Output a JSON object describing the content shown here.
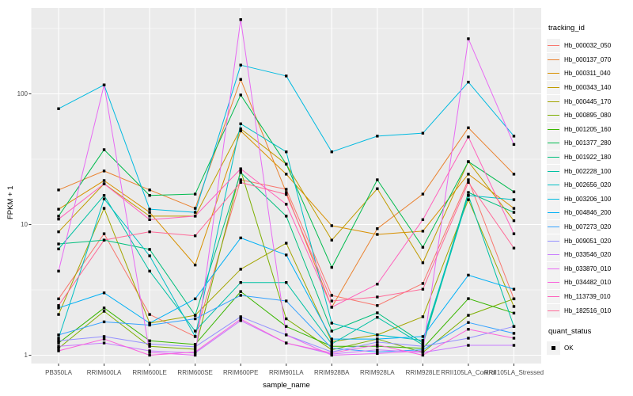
{
  "chart_data": {
    "type": "line",
    "xlabel": "sample_name",
    "ylabel": "FPKM + 1",
    "y_scale": "log10",
    "y_tick_labels": [
      "1",
      "10",
      "100"
    ],
    "y_tick_values": [
      1,
      10,
      100
    ],
    "y_minor_values": [
      3.1623,
      31.623,
      316.23
    ],
    "ylim": [
      0.76,
      470
    ],
    "grid": true,
    "legend_position": "right",
    "categories": [
      "PB350LA",
      "RRIM600LA",
      "RRIM600LE",
      "RRIM600SE",
      "RRIM600PE",
      "RRIM901LA",
      "RRIM928BA",
      "RRIM928LA",
      "RRIM928LE",
      "RRII105LA_Control",
      "RRII105LA_Stressed"
    ],
    "legend": {
      "tracking_title": "tracking_id",
      "quant_title": "quant_status",
      "quant_item": "OK"
    },
    "point_shape": "filled-square",
    "point_color": "#000000",
    "colors": {
      "panel_bg": "#EBEBEB",
      "grid": "#FFFFFF",
      "tick_mark": "#333333",
      "tick_label": "#4D4D4D",
      "axis_title": "#000000",
      "legend_key_bg": "#F2F2F2"
    },
    "series": [
      {
        "name": "Hb_000032_050",
        "color": "#F8766D",
        "values": [
          2.7,
          8.5,
          2.05,
          1.39,
          22,
          18.6,
          2.87,
          2.4,
          3.54,
          22,
          2.7
        ]
      },
      {
        "name": "Hb_000137_070",
        "color": "#EA8331",
        "values": [
          18.4,
          25.7,
          18.4,
          13.3,
          129,
          17.6,
          2.33,
          9.3,
          17.1,
          55,
          24.3
        ]
      },
      {
        "name": "Hb_000311_040",
        "color": "#D89000",
        "values": [
          13.1,
          21.7,
          12.4,
          4.9,
          52,
          24.3,
          9.8,
          8.4,
          8.9,
          24.3,
          13.3
        ]
      },
      {
        "name": "Hb_000343_140",
        "color": "#C09B00",
        "values": [
          8.8,
          20.5,
          11.6,
          11.6,
          54,
          29,
          7.6,
          18.8,
          5.1,
          30.3,
          10.7
        ]
      },
      {
        "name": "Hb_000445_170",
        "color": "#A3A500",
        "values": [
          2.05,
          13.3,
          1.76,
          2.02,
          4.55,
          7.2,
          1.27,
          1.43,
          1.97,
          15.5,
          2.36
        ]
      },
      {
        "name": "Hb_000895_080",
        "color": "#7CAE00",
        "values": [
          1.13,
          2.17,
          1.17,
          1.11,
          26,
          1.9,
          1.1,
          1.33,
          1.05,
          2.02,
          2.7
        ]
      },
      {
        "name": "Hb_001205_160",
        "color": "#39B600",
        "values": [
          1.24,
          2.3,
          1.29,
          1.21,
          3.07,
          1.66,
          1.17,
          1.17,
          1.13,
          2.71,
          2.1
        ]
      },
      {
        "name": "Hb_001377_280",
        "color": "#00BB4E",
        "values": [
          11.6,
          37.4,
          16.7,
          17.1,
          98,
          29,
          4.7,
          22,
          6.7,
          30.3,
          17.8
        ]
      },
      {
        "name": "Hb_001922_180",
        "color": "#00BF7D",
        "values": [
          7.1,
          7.6,
          6.45,
          2.02,
          25,
          11.6,
          1.53,
          2.11,
          1.24,
          17.6,
          12.4
        ]
      },
      {
        "name": "Hb_002228_100",
        "color": "#00C1A3",
        "values": [
          6.5,
          16.7,
          4.4,
          1.53,
          3.6,
          3.6,
          1.22,
          1.95,
          1.2,
          16.7,
          1.66
        ]
      },
      {
        "name": "Hb_002656_020",
        "color": "#00BFC4",
        "values": [
          1.35,
          15.7,
          5.76,
          1.39,
          59,
          36,
          1.76,
          1.43,
          1.3,
          16.7,
          15.5
        ]
      },
      {
        "name": "Hb_003206_100",
        "color": "#00BAE0",
        "values": [
          77,
          117,
          13.1,
          12.4,
          166,
          137,
          36,
          47.5,
          50,
          123,
          47.5
        ]
      },
      {
        "name": "Hb_004846_200",
        "color": "#00B0F6",
        "values": [
          2.3,
          3.0,
          1.76,
          2.7,
          7.9,
          5.85,
          1.33,
          1.33,
          1.39,
          4.1,
          3.2
        ]
      },
      {
        "name": "Hb_007273_020",
        "color": "#35A2FF",
        "values": [
          1.43,
          1.8,
          1.7,
          1.9,
          2.87,
          2.6,
          1.13,
          1.06,
          1.1,
          1.78,
          1.47
        ]
      },
      {
        "name": "Hb_009051_020",
        "color": "#9590FF",
        "values": [
          1.29,
          1.39,
          1.22,
          1.16,
          1.97,
          1.43,
          1.06,
          1.26,
          1.17,
          1.35,
          1.66
        ]
      },
      {
        "name": "Hb_033546_020",
        "color": "#C77CFF",
        "values": [
          1.17,
          1.24,
          1.08,
          1.04,
          1.84,
          1.24,
          1.02,
          1.1,
          1.05,
          1.19,
          1.19
        ]
      },
      {
        "name": "Hb_033870_010",
        "color": "#E76BF3",
        "values": [
          4.4,
          117,
          1.05,
          1.0,
          370,
          1.43,
          1.0,
          1.03,
          1.08,
          264,
          41
        ]
      },
      {
        "name": "Hb_034482_010",
        "color": "#FA62DB",
        "values": [
          1.08,
          1.33,
          1.0,
          1.06,
          1.89,
          1.24,
          1.04,
          1.2,
          1.0,
          1.58,
          1.35
        ]
      },
      {
        "name": "Hb_113739_010",
        "color": "#FF62BC",
        "values": [
          11.0,
          20.5,
          10.9,
          11.6,
          26.7,
          14.3,
          2.33,
          3.5,
          10.9,
          46.8,
          8.5
        ]
      },
      {
        "name": "Hb_182516_010",
        "color": "#FF6A98",
        "values": [
          2.4,
          7.6,
          8.8,
          8.2,
          21,
          17.0,
          2.6,
          2.79,
          3.2,
          21,
          6.6
        ]
      }
    ]
  }
}
